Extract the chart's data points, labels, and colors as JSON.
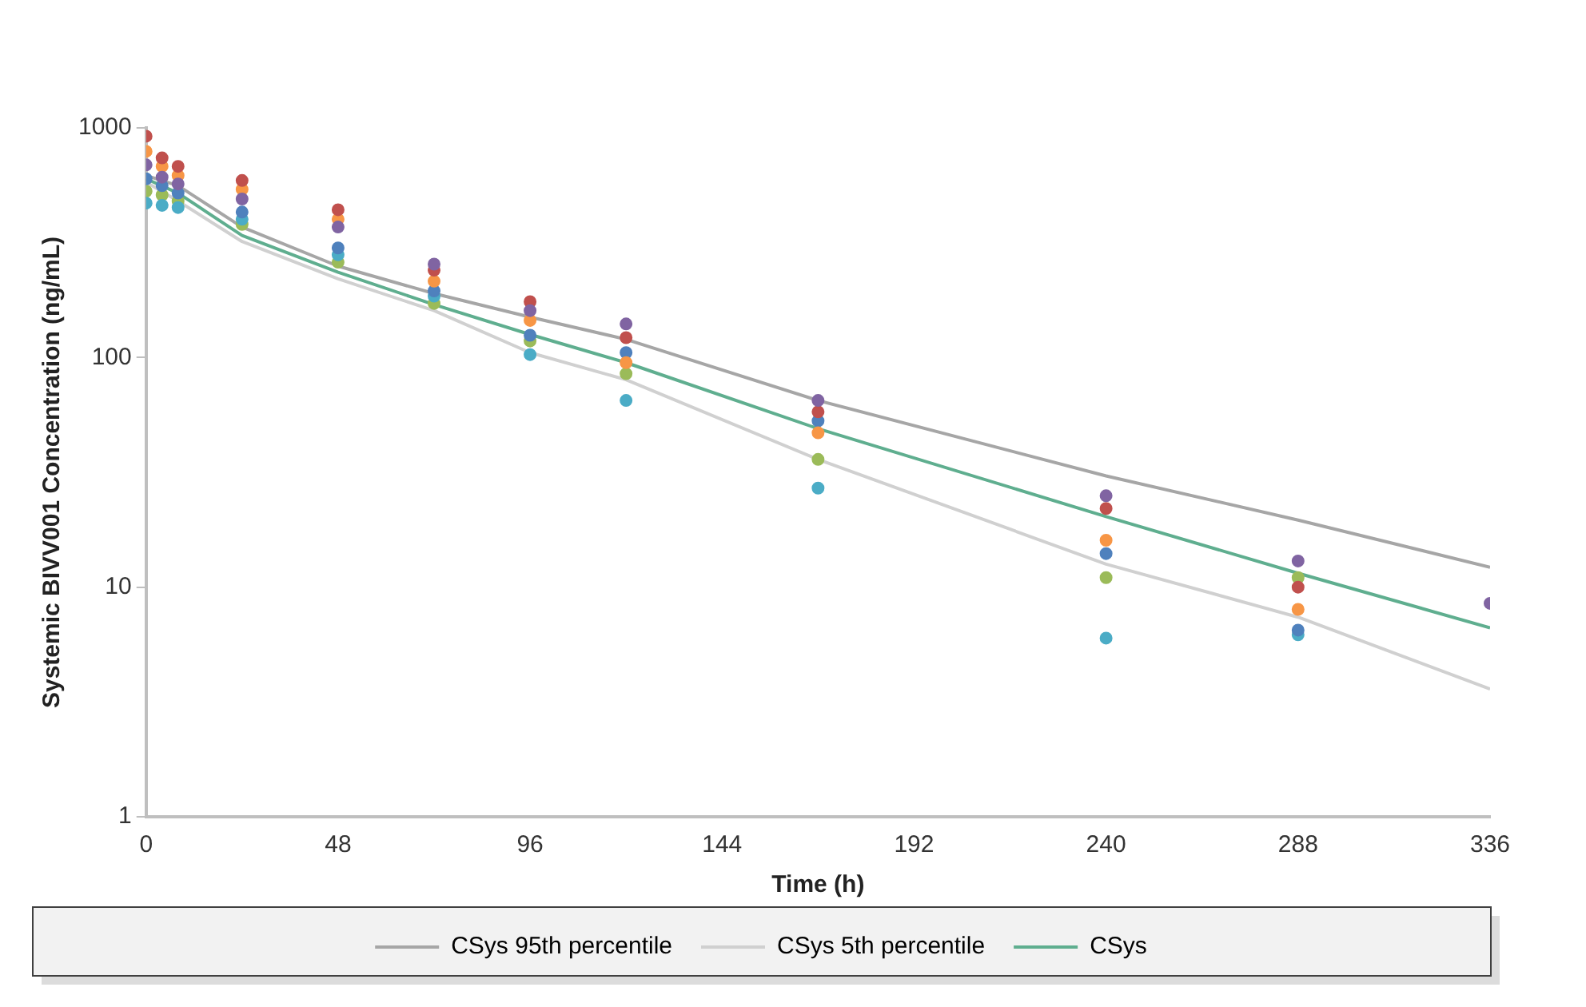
{
  "chart_data": {
    "type": "scatter",
    "xlabel": "Time (h)",
    "ylabel": "Systemic BIVV001 Concentration (ng/mL)",
    "log": "y",
    "grid": false,
    "legend": "bottom",
    "xlim": [
      0,
      336
    ],
    "xticks": [
      0,
      48,
      96,
      144,
      192,
      240,
      288,
      336
    ],
    "ylim": [
      1,
      1000
    ],
    "yticks": [
      1,
      10,
      100,
      1000
    ],
    "series": [
      {
        "name": "CSys 95th percentile",
        "type": "line",
        "marker": "none",
        "color": "#a6a6a6",
        "x": [
          0,
          8,
          24,
          48,
          72,
          96,
          120,
          168,
          240,
          288,
          336
        ],
        "values": [
          620,
          560,
          370,
          250,
          190,
          150,
          120,
          65,
          30.5,
          19.6,
          12.2
        ]
      },
      {
        "name": "CSys 5th percentile",
        "type": "line",
        "marker": "none",
        "color": "#d0d0d0",
        "x": [
          0,
          8,
          24,
          48,
          72,
          96,
          120,
          168,
          240,
          288,
          336
        ],
        "values": [
          580,
          480,
          320,
          220,
          160,
          105,
          80,
          36,
          12.6,
          7.4,
          3.6
        ]
      },
      {
        "name": "CSys",
        "type": "line",
        "marker": "none",
        "color": "#5fae8f",
        "x": [
          0,
          8,
          24,
          48,
          72,
          96,
          120,
          168,
          240,
          288,
          336
        ],
        "values": [
          600,
          520,
          340,
          235,
          170,
          126,
          95,
          49,
          20.3,
          11.5,
          6.65
        ]
      },
      {
        "type": "scatter",
        "marker": "circle",
        "color": "#8064a2",
        "x": [
          0,
          4,
          8,
          24,
          48,
          72,
          96,
          120,
          168,
          240,
          288,
          336
        ],
        "values": [
          690,
          610,
          570,
          490,
          370,
          255,
          160,
          140,
          65,
          25,
          13,
          8.5
        ]
      },
      {
        "type": "scatter",
        "marker": "circle",
        "color": "#c0504d",
        "x": [
          0,
          4,
          8,
          24,
          48,
          72,
          96,
          120,
          168,
          240,
          288
        ],
        "values": [
          920,
          740,
          680,
          590,
          440,
          240,
          175,
          122,
          58,
          22,
          10
        ]
      },
      {
        "type": "scatter",
        "marker": "circle",
        "color": "#f79646",
        "x": [
          0,
          4,
          8,
          24,
          48,
          72,
          96,
          120,
          168,
          240,
          288
        ],
        "values": [
          790,
          680,
          620,
          540,
          400,
          215,
          145,
          95,
          47,
          16,
          8
        ]
      },
      {
        "type": "scatter",
        "marker": "circle",
        "color": "#4f81bd",
        "x": [
          0,
          4,
          8,
          24,
          48,
          72,
          96,
          120,
          168,
          240,
          288
        ],
        "values": [
          600,
          560,
          520,
          430,
          300,
          195,
          125,
          105,
          53,
          14,
          6.5
        ]
      },
      {
        "type": "scatter",
        "marker": "circle",
        "color": "#4bacc6",
        "x": [
          0,
          4,
          8,
          24,
          48,
          72,
          96,
          120,
          168,
          240,
          288
        ],
        "values": [
          470,
          460,
          450,
          400,
          280,
          185,
          103,
          65,
          27,
          6,
          6.2
        ]
      },
      {
        "type": "scatter",
        "marker": "circle",
        "color": "#9bbb59",
        "x": [
          0,
          4,
          8,
          24,
          48,
          72,
          96,
          120,
          168,
          240,
          288
        ],
        "values": [
          530,
          510,
          480,
          380,
          260,
          172,
          118,
          85,
          36,
          11,
          11
        ]
      }
    ]
  }
}
